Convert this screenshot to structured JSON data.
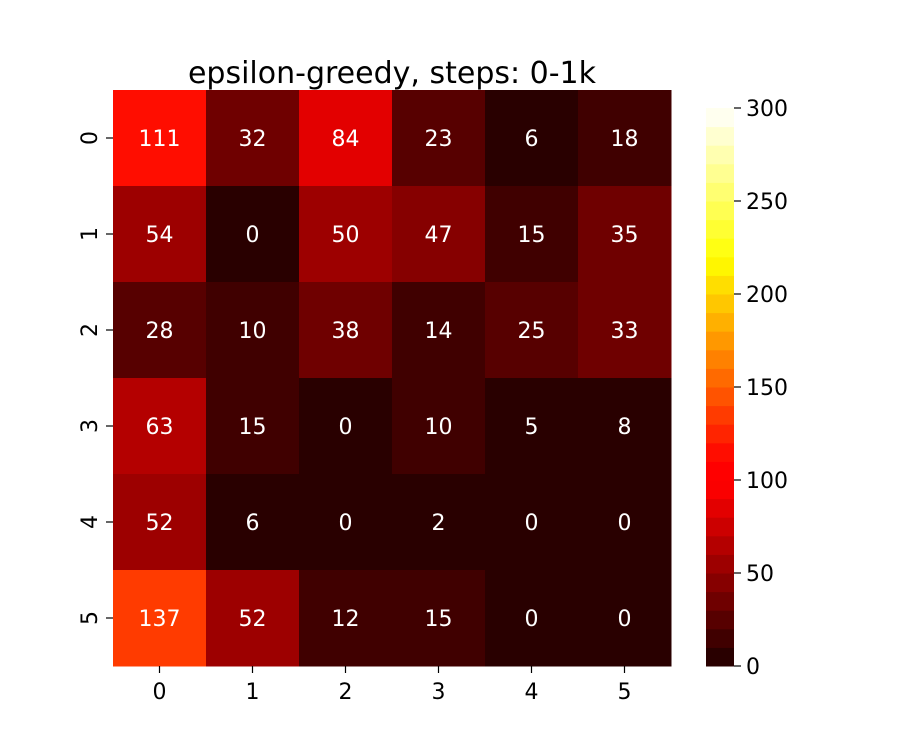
{
  "chart_data": {
    "type": "heatmap",
    "title": "epsilon-greedy, steps: 0-1k",
    "xlabel": "",
    "ylabel": "",
    "x_categories": [
      "0",
      "1",
      "2",
      "3",
      "4",
      "5"
    ],
    "y_categories": [
      "0",
      "1",
      "2",
      "3",
      "4",
      "5"
    ],
    "values": [
      [
        111,
        32,
        84,
        23,
        6,
        18
      ],
      [
        54,
        0,
        50,
        47,
        15,
        35
      ],
      [
        28,
        10,
        38,
        14,
        25,
        33
      ],
      [
        63,
        15,
        0,
        10,
        5,
        8
      ],
      [
        52,
        6,
        0,
        2,
        0,
        0
      ],
      [
        137,
        52,
        12,
        15,
        0,
        0
      ]
    ],
    "colorscale": "hot",
    "color_range": [
      0,
      300
    ],
    "colorbar_ticks": [
      "0",
      "50",
      "100",
      "150",
      "200",
      "250",
      "300"
    ],
    "colorbar_levels": 30,
    "annotation_color": "#ffffff",
    "grid": false,
    "legend": "colorbar-right"
  }
}
